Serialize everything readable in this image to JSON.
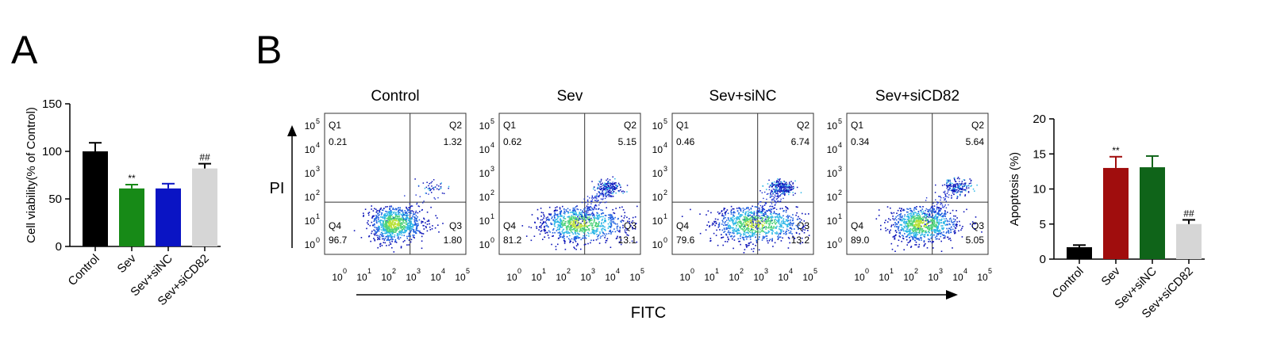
{
  "panels": {
    "a_label": "A",
    "b_label": "B"
  },
  "colors": {
    "black": "#000000",
    "green": "#178a17",
    "blue": "#0a14c4",
    "light_gray": "#d6d6d6",
    "dark_red": "#a00d0d",
    "dark_green": "#0f6419"
  },
  "chart_data": [
    {
      "id": "viability",
      "type": "bar",
      "ylabel": "Cell viability(% of Control)",
      "ylim": [
        0,
        150
      ],
      "yticks": [
        "0",
        "50",
        "100",
        "150"
      ],
      "categories": [
        "Control",
        "Sev",
        "Sev+siNC",
        "Sev+siCD82"
      ],
      "values": [
        100,
        61,
        61,
        82
      ],
      "errors": [
        9,
        4,
        5,
        5
      ],
      "colors": [
        "#000000",
        "#178a17",
        "#0a14c4",
        "#d6d6d6"
      ],
      "annotations": [
        "",
        "**",
        "",
        "##"
      ]
    },
    {
      "id": "flow",
      "type": "scatter",
      "xlabel": "FITC",
      "ylabel": "PI",
      "x_ticks": [
        "0",
        "1",
        "2",
        "3",
        "4",
        "5"
      ],
      "y_ticks": [
        "5",
        "4",
        "3",
        "2",
        "1",
        "0"
      ],
      "plots": [
        {
          "title": "Control",
          "Q1": "0.21",
          "Q2": "1.32",
          "Q3": "1.80",
          "Q4": "96.7"
        },
        {
          "title": "Sev",
          "Q1": "0.62",
          "Q2": "5.15",
          "Q3": "13.1",
          "Q4": "81.2"
        },
        {
          "title": "Sev+siNC",
          "Q1": "0.46",
          "Q2": "6.74",
          "Q3": "13.2",
          "Q4": "79.6"
        },
        {
          "title": "Sev+siCD82",
          "Q1": "0.34",
          "Q2": "5.64",
          "Q3": "5.05",
          "Q4": "89.0"
        }
      ],
      "quadrant_names": [
        "Q1",
        "Q2",
        "Q3",
        "Q4"
      ]
    },
    {
      "id": "apoptosis",
      "type": "bar",
      "ylabel": "Apoptosis (%)",
      "ylim": [
        0,
        20
      ],
      "yticks": [
        "0",
        "5",
        "10",
        "15",
        "20"
      ],
      "categories": [
        "Control",
        "Sev",
        "Sev+siNC",
        "Sev+siCD82"
      ],
      "values": [
        1.7,
        13,
        13.1,
        5
      ],
      "errors": [
        0.3,
        1.6,
        1.6,
        0.6
      ],
      "colors": [
        "#000000",
        "#a00d0d",
        "#0f6419",
        "#d6d6d6"
      ],
      "annotations": [
        "",
        "**",
        "",
        "##"
      ]
    }
  ]
}
